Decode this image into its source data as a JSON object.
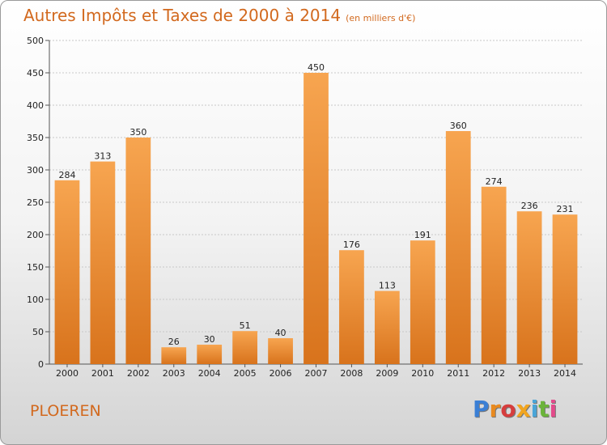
{
  "header": {
    "title": "Autres Impôts et Taxes de 2000 à 2014",
    "subtitle": "(en milliers d'€)"
  },
  "footer": {
    "place": "PLOEREN",
    "logo": "Proxiti"
  },
  "colors": {
    "bar_light": "#f7a550",
    "bar_dark": "#d8731c",
    "title": "#d2691e",
    "logo_letters": [
      "#3a7fd5",
      "#e98a1f",
      "#d63d3d",
      "#f2a51f",
      "#4aa5d8",
      "#6bb43a",
      "#e34b8b"
    ]
  },
  "chart_data": {
    "type": "bar",
    "title": "Autres Impôts et Taxes de 2000 à 2014",
    "categories": [
      "2000",
      "2001",
      "2002",
      "2003",
      "2004",
      "2005",
      "2006",
      "2007",
      "2008",
      "2009",
      "2010",
      "2011",
      "2012",
      "2013",
      "2014"
    ],
    "values": [
      284,
      313,
      350,
      26,
      30,
      51,
      40,
      450,
      176,
      113,
      191,
      360,
      274,
      236,
      231
    ],
    "ylim": [
      0,
      500
    ],
    "yticks": [
      0,
      50,
      100,
      150,
      200,
      250,
      300,
      350,
      400,
      450,
      500
    ],
    "grid": true,
    "xlabel": "",
    "ylabel": ""
  }
}
